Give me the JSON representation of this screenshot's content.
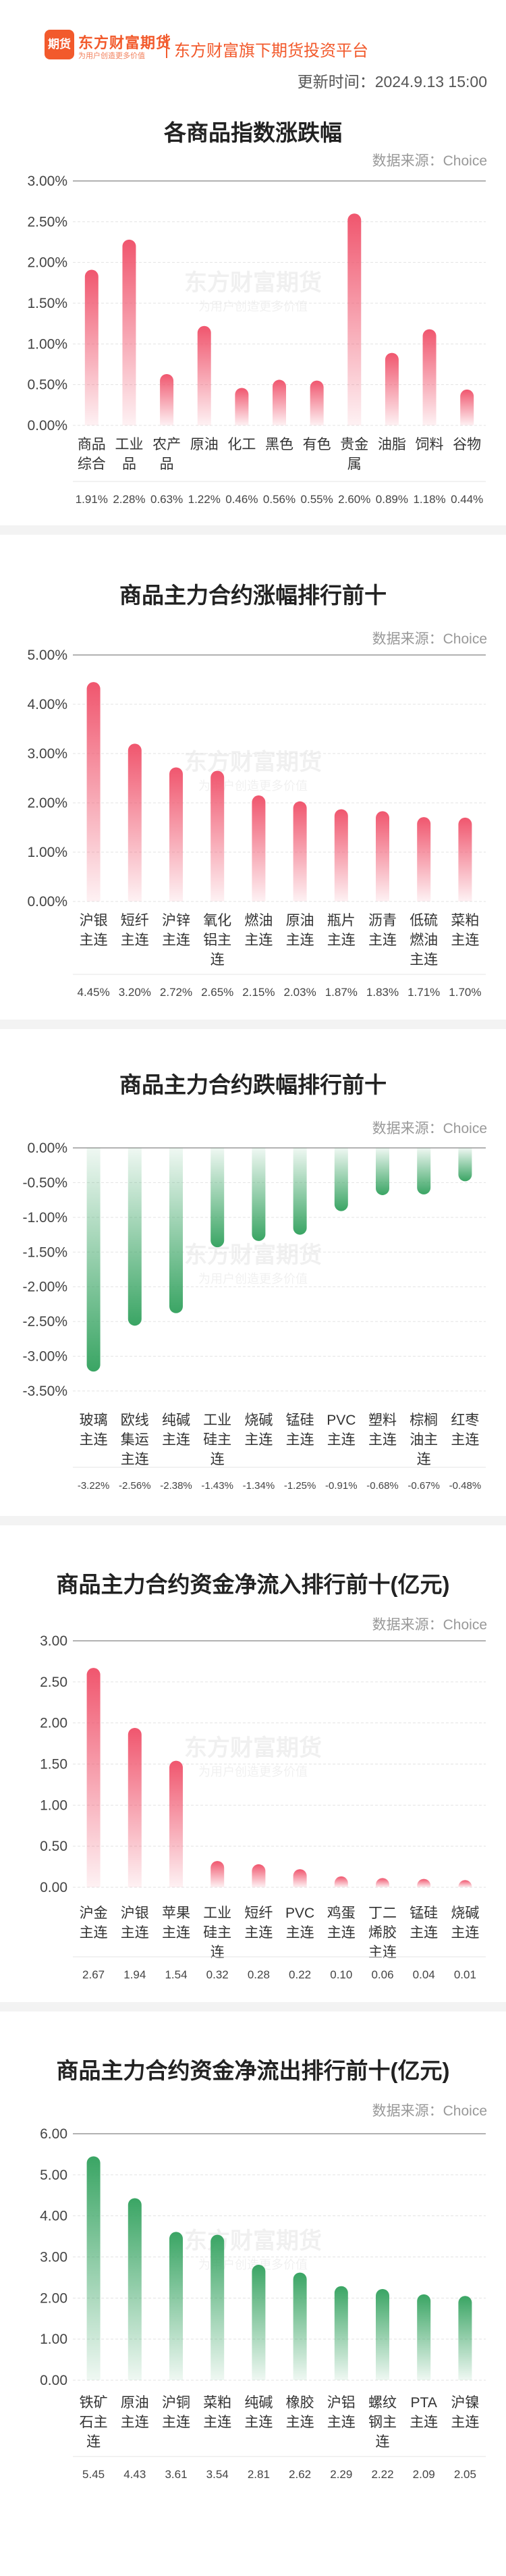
{
  "header": {
    "logo_text": "期货",
    "brand_name": "东方财富期货",
    "brand_slogan": "为用户创造更多价值",
    "platform": "东方财富旗下期货投资平台",
    "update_time": "更新时间：2024.9.13 15:00",
    "accent_color": "#f25a2c"
  },
  "watermark": {
    "name": "东方财富期货",
    "slogan": "为用户创造更多价值"
  },
  "charts": [
    {
      "title": "各商品指数涨跌幅",
      "source": "数据来源：Choice",
      "chart_data": {
        "type": "bar",
        "color": "#f0566e",
        "categories": [
          [
            "商品",
            "综合"
          ],
          [
            "工业",
            "品"
          ],
          [
            "农产",
            "品"
          ],
          [
            "原油"
          ],
          [
            "化工"
          ],
          [
            "黑色"
          ],
          [
            "有色"
          ],
          [
            "贵金",
            "属"
          ],
          [
            "油脂"
          ],
          [
            "饲料"
          ],
          [
            "谷物"
          ]
        ],
        "values": [
          1.91,
          2.28,
          0.63,
          1.22,
          0.46,
          0.56,
          0.55,
          2.6,
          0.89,
          1.18,
          0.44
        ],
        "value_labels": [
          "1.91%",
          "2.28%",
          "0.63%",
          "1.22%",
          "0.46%",
          "0.56%",
          "0.55%",
          "2.60%",
          "0.89%",
          "1.18%",
          "0.44%"
        ],
        "yticks": [
          "0.00%",
          "0.50%",
          "1.00%",
          "1.50%",
          "2.00%",
          "2.50%",
          "3.00%"
        ],
        "ylim": [
          0,
          3.0
        ]
      }
    },
    {
      "title": "商品主力合约涨幅排行前十",
      "source": "数据来源：Choice",
      "chart_data": {
        "type": "bar",
        "color": "#f0566e",
        "categories": [
          [
            "沪银",
            "主连"
          ],
          [
            "短纤",
            "主连"
          ],
          [
            "沪锌",
            "主连"
          ],
          [
            "氧化",
            "铝主",
            "连"
          ],
          [
            "燃油",
            "主连"
          ],
          [
            "原油",
            "主连"
          ],
          [
            "瓶片",
            "主连"
          ],
          [
            "沥青",
            "主连"
          ],
          [
            "低硫",
            "燃油",
            "主连"
          ],
          [
            "菜粕",
            "主连"
          ]
        ],
        "values": [
          4.45,
          3.2,
          2.72,
          2.65,
          2.15,
          2.03,
          1.87,
          1.83,
          1.71,
          1.7
        ],
        "value_labels": [
          "4.45%",
          "3.20%",
          "2.72%",
          "2.65%",
          "2.15%",
          "2.03%",
          "1.87%",
          "1.83%",
          "1.71%",
          "1.70%"
        ],
        "yticks": [
          "0.00%",
          "1.00%",
          "2.00%",
          "3.00%",
          "4.00%",
          "5.00%"
        ],
        "ylim": [
          0,
          5.0
        ]
      }
    },
    {
      "title": "商品主力合约跌幅排行前十",
      "source": "数据来源：Choice",
      "chart_data": {
        "type": "bar",
        "color": "#3aa564",
        "categories": [
          [
            "玻璃",
            "主连"
          ],
          [
            "欧线",
            "集运",
            "主连"
          ],
          [
            "纯碱",
            "主连"
          ],
          [
            "工业",
            "硅主",
            "连"
          ],
          [
            "烧碱",
            "主连"
          ],
          [
            "锰硅",
            "主连"
          ],
          [
            "PVC",
            "主连"
          ],
          [
            "塑料",
            "主连"
          ],
          [
            "棕榈",
            "油主",
            "连"
          ],
          [
            "红枣",
            "主连"
          ]
        ],
        "values": [
          -3.22,
          -2.56,
          -2.38,
          -1.43,
          -1.34,
          -1.25,
          -0.91,
          -0.68,
          -0.67,
          -0.48
        ],
        "value_labels": [
          "-3.22%",
          "-2.56%",
          "-2.38%",
          "-1.43%",
          "-1.34%",
          "-1.25%",
          "-0.91%",
          "-0.68%",
          "-0.67%",
          "-0.48%"
        ],
        "yticks": [
          "0.00%",
          "-0.50%",
          "-1.00%",
          "-1.50%",
          "-2.00%",
          "-2.50%",
          "-3.00%",
          "-3.50%"
        ],
        "ylim": [
          -3.5,
          0
        ]
      }
    },
    {
      "title": "商品主力合约资金净流入排行前十(亿元)",
      "source": "数据来源：Choice",
      "chart_data": {
        "type": "bar",
        "color": "#f0566e",
        "categories": [
          [
            "沪金",
            "主连"
          ],
          [
            "沪银",
            "主连"
          ],
          [
            "苹果",
            "主连"
          ],
          [
            "工业",
            "硅主",
            "连"
          ],
          [
            "短纤",
            "主连"
          ],
          [
            "PVC",
            "主连"
          ],
          [
            "鸡蛋",
            "主连"
          ],
          [
            "丁二",
            "烯胶",
            "主连"
          ],
          [
            "锰硅",
            "主连"
          ],
          [
            "烧碱",
            "主连"
          ]
        ],
        "values": [
          2.67,
          1.94,
          1.54,
          0.32,
          0.28,
          0.22,
          0.1,
          0.06,
          0.04,
          0.01
        ],
        "value_labels": [
          "2.67",
          "1.94",
          "1.54",
          "0.32",
          "0.28",
          "0.22",
          "0.10",
          "0.06",
          "0.04",
          "0.01"
        ],
        "yticks": [
          "0.00",
          "0.50",
          "1.00",
          "1.50",
          "2.00",
          "2.50",
          "3.00"
        ],
        "ylim": [
          0,
          3.0
        ]
      }
    },
    {
      "title": "商品主力合约资金净流出排行前十(亿元)",
      "source": "数据来源：Choice",
      "chart_data": {
        "type": "bar",
        "color": "#3aa564",
        "categories": [
          [
            "铁矿",
            "石主",
            "连"
          ],
          [
            "原油",
            "主连"
          ],
          [
            "沪铜",
            "主连"
          ],
          [
            "菜粕",
            "主连"
          ],
          [
            "纯碱",
            "主连"
          ],
          [
            "橡胶",
            "主连"
          ],
          [
            "沪铝",
            "主连"
          ],
          [
            "螺纹",
            "钢主",
            "连"
          ],
          [
            "PTA",
            "主连"
          ],
          [
            "沪镍",
            "主连"
          ]
        ],
        "values": [
          5.45,
          4.43,
          3.61,
          3.54,
          2.81,
          2.62,
          2.29,
          2.22,
          2.09,
          2.05
        ],
        "value_labels": [
          "5.45",
          "4.43",
          "3.61",
          "3.54",
          "2.81",
          "2.62",
          "2.29",
          "2.22",
          "2.09",
          "2.05"
        ],
        "yticks": [
          "0.00",
          "1.00",
          "2.00",
          "3.00",
          "4.00",
          "5.00",
          "6.00"
        ],
        "ylim": [
          0,
          6.0
        ]
      }
    }
  ]
}
